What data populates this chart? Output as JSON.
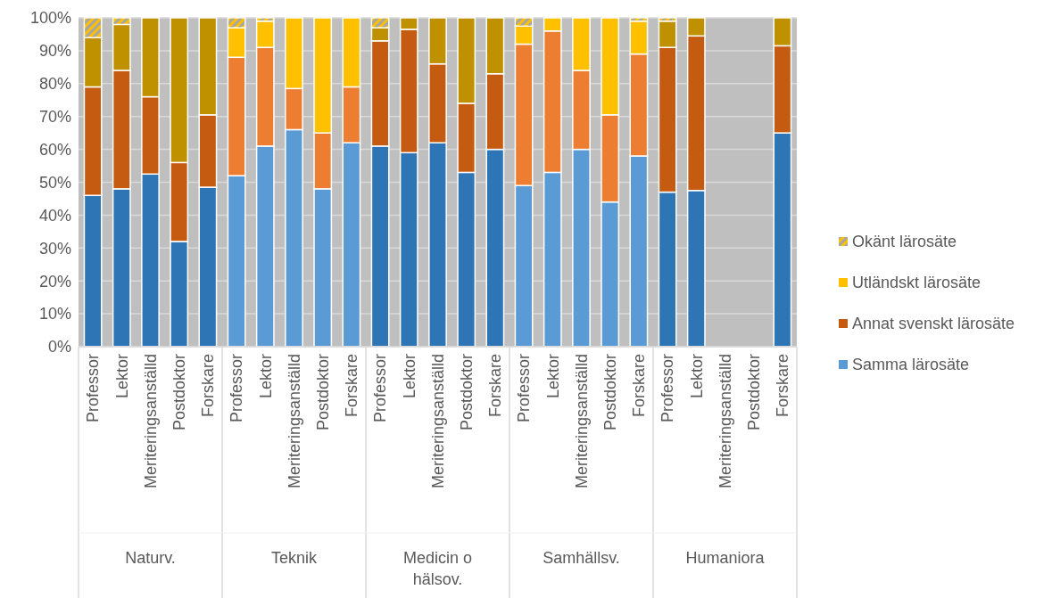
{
  "chart_data": {
    "type": "bar",
    "stacked": true,
    "categories": [
      "Professor",
      "Lektor",
      "Meriteringsanställd",
      "Postdoktor",
      "Forskare",
      "Professor",
      "Lektor",
      "Meriteringsanställd",
      "Postdoktor",
      "Forskare",
      "Professor",
      "Lektor",
      "Meriteringsanställd",
      "Postdoktor",
      "Forskare",
      "Professor",
      "Lektor",
      "Meriteringsanställd",
      "Postdoktor",
      "Forskare",
      "Professor",
      "Lektor",
      "Meriteringsanställd",
      "Postdoktor",
      "Forskare"
    ],
    "annotations": [
      "Naturv.",
      "Teknik",
      "Medicin o hälsov.",
      "Samhällsv.",
      "Humaniora"
    ],
    "series": [
      {
        "name": "Samma lärosäte",
        "color": "#5b9bd5",
        "colors": [
          "#2e75b6",
          "#2e75b6",
          "#2e75b6",
          "#2e75b6",
          "#2e75b6",
          "#5b9bd5",
          "#5b9bd5",
          "#5b9bd5",
          "#5b9bd5",
          "#5b9bd5",
          "#2e75b6",
          "#2e75b6",
          "#2e75b6",
          "#2e75b6",
          "#2e75b6",
          "#5b9bd5",
          "#5b9bd5",
          "#5b9bd5",
          "#5b9bd5",
          "#5b9bd5",
          "#2e75b6",
          "#2e75b6",
          "#2e75b6",
          "#2e75b6",
          "#2e75b6"
        ],
        "values": [
          46,
          48,
          52.5,
          32,
          48.5,
          52,
          61,
          66,
          48,
          62,
          61,
          59,
          62,
          53,
          60,
          49,
          53,
          60,
          44,
          58,
          47,
          47.5,
          null,
          null,
          65
        ]
      },
      {
        "name": "Annat svenskt lärosäte",
        "color": "#c55a11",
        "colors": [
          "#c55a11",
          "#c55a11",
          "#c55a11",
          "#c55a11",
          "#c55a11",
          "#ed7d31",
          "#ed7d31",
          "#ed7d31",
          "#ed7d31",
          "#ed7d31",
          "#c55a11",
          "#c55a11",
          "#c55a11",
          "#c55a11",
          "#c55a11",
          "#ed7d31",
          "#ed7d31",
          "#ed7d31",
          "#ed7d31",
          "#ed7d31",
          "#c55a11",
          "#c55a11",
          "#c55a11",
          "#c55a11",
          "#c55a11"
        ],
        "values": [
          33,
          36,
          23.5,
          24,
          22,
          36,
          30,
          12.5,
          17,
          17,
          32,
          37.5,
          24,
          21,
          23,
          43,
          43,
          24,
          26.5,
          31,
          44,
          47,
          null,
          null,
          26.5
        ]
      },
      {
        "name": "Utländskt lärosäte",
        "color": "#ffc000",
        "colors": [
          "#bf9000",
          "#bf9000",
          "#bf9000",
          "#bf9000",
          "#bf9000",
          "#ffc000",
          "#ffc000",
          "#ffc000",
          "#ffc000",
          "#ffc000",
          "#bf9000",
          "#bf9000",
          "#bf9000",
          "#bf9000",
          "#bf9000",
          "#ffc000",
          "#ffc000",
          "#ffc000",
          "#ffc000",
          "#ffc000",
          "#bf9000",
          "#bf9000",
          "#bf9000",
          "#bf9000",
          "#bf9000"
        ],
        "values": [
          15,
          14,
          24,
          44,
          29.5,
          9,
          8,
          21.5,
          35,
          21,
          4,
          3.5,
          14,
          26,
          17,
          5.5,
          4,
          16,
          29.5,
          10,
          8,
          5.5,
          null,
          null,
          8.5
        ]
      },
      {
        "name": "Okänt lärosäte",
        "color": "#ffc000",
        "values": [
          6,
          2,
          0,
          0,
          0,
          3,
          1,
          0,
          0,
          0,
          3,
          0,
          0,
          0,
          0,
          2.5,
          0,
          0,
          0,
          1,
          1,
          0,
          null,
          null,
          0
        ]
      }
    ],
    "ylim": [
      0,
      100
    ],
    "yticks": [
      {
        "value": 0,
        "label": "0%"
      },
      {
        "value": 10,
        "label": "10%"
      },
      {
        "value": 20,
        "label": "20%"
      },
      {
        "value": 30,
        "label": "30%"
      },
      {
        "value": 40,
        "label": "40%"
      },
      {
        "value": 50,
        "label": "50%"
      },
      {
        "value": 60,
        "label": "60%"
      },
      {
        "value": 70,
        "label": "70%"
      },
      {
        "value": 80,
        "label": "80%"
      },
      {
        "value": 90,
        "label": "90%"
      },
      {
        "value": 100,
        "label": "100%"
      }
    ],
    "grid": "y",
    "legend": "right"
  }
}
